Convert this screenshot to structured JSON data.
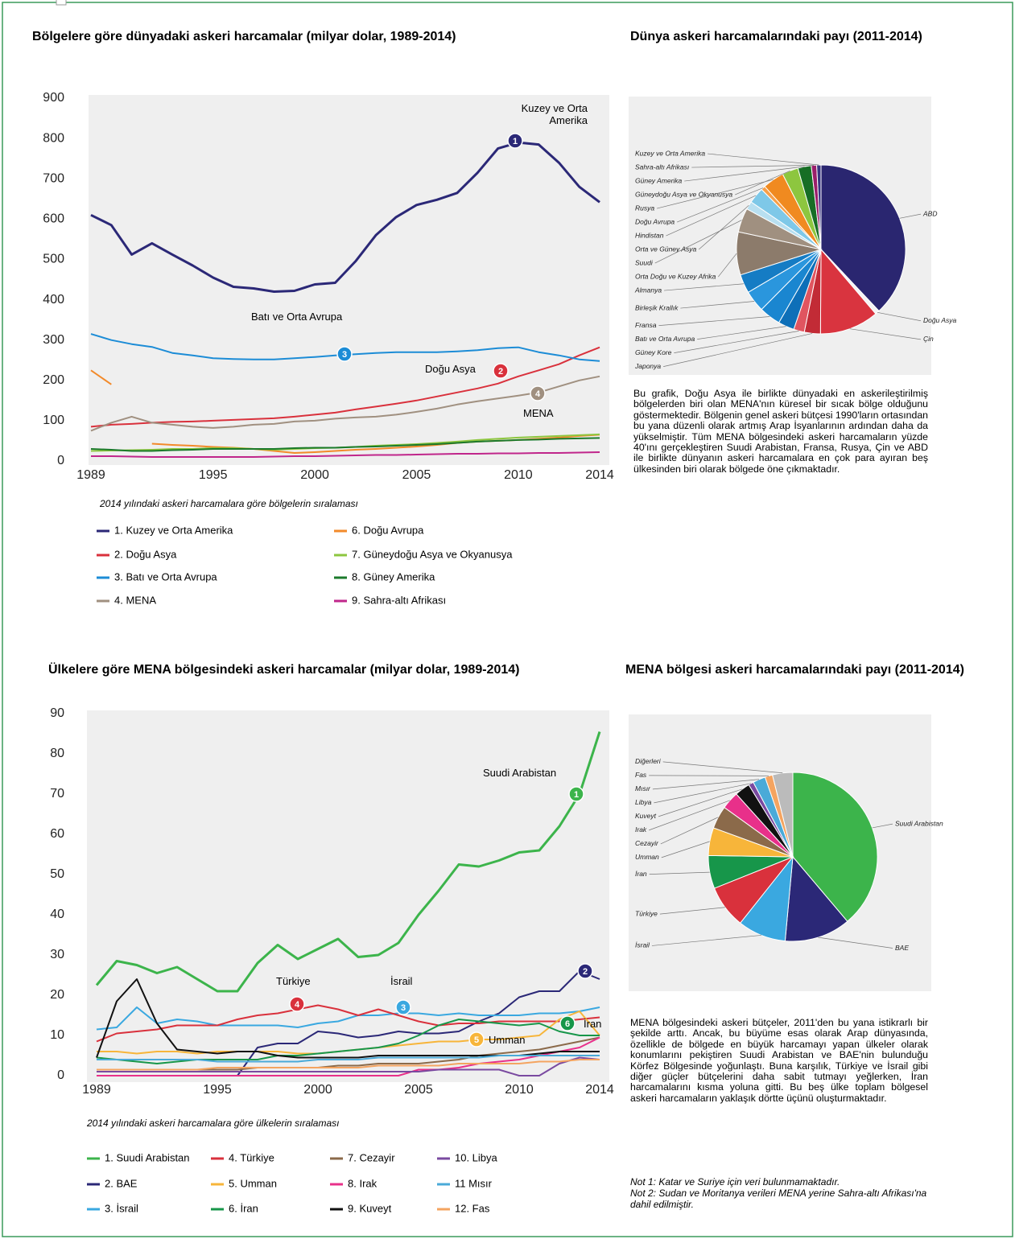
{
  "chart_data": [
    {
      "type": "line",
      "title": "Bölgelere göre dünyadaki askeri harcamalar (milyar dolar, 1989-2014)",
      "x": [
        1989,
        1990,
        1991,
        1992,
        1993,
        1994,
        1995,
        1996,
        1997,
        1998,
        1999,
        2000,
        2001,
        2002,
        2003,
        2004,
        2005,
        2006,
        2007,
        2008,
        2009,
        2010,
        2011,
        2012,
        2013,
        2014
      ],
      "xlim": [
        1989,
        2014
      ],
      "xticks": [
        1989,
        1995,
        2000,
        2005,
        2010,
        2014
      ],
      "ylim": [
        0,
        900
      ],
      "yticks": [
        0,
        100,
        200,
        300,
        400,
        500,
        600,
        700,
        800,
        900
      ],
      "grid": false,
      "legend_title": "2014 yılındaki askeri harcamalara göre bölgelerin sıralaması",
      "series": [
        {
          "name": "1. Kuzey ve Orta Amerika",
          "color": "#2b2877",
          "values": [
            610,
            585,
            512,
            540,
            512,
            485,
            455,
            432,
            428,
            420,
            422,
            438,
            442,
            495,
            560,
            605,
            635,
            648,
            665,
            715,
            775,
            790,
            785,
            740,
            680,
            642
          ]
        },
        {
          "name": "2. Doğu Asya",
          "color": "#d9313c",
          "values": [
            85,
            90,
            92,
            95,
            97,
            98,
            100,
            102,
            104,
            106,
            110,
            115,
            120,
            128,
            135,
            142,
            150,
            160,
            170,
            180,
            192,
            210,
            225,
            240,
            262,
            282
          ]
        },
        {
          "name": "3. Batı ve Orta Avrupa",
          "color": "#1c8cd6",
          "values": [
            315,
            300,
            290,
            283,
            268,
            262,
            255,
            253,
            252,
            252,
            255,
            258,
            262,
            265,
            268,
            270,
            270,
            270,
            272,
            275,
            280,
            282,
            270,
            262,
            252,
            248
          ]
        },
        {
          "name": "4. MENA",
          "color": "#a09080",
          "values": [
            75,
            95,
            110,
            95,
            90,
            85,
            82,
            85,
            90,
            92,
            98,
            100,
            105,
            108,
            110,
            115,
            122,
            130,
            140,
            148,
            155,
            162,
            170,
            185,
            200,
            210
          ]
        },
        {
          "name": "6. Doğu Avrupa",
          "color": "#f28a2a",
          "values": [
            225,
            190,
            null,
            43,
            40,
            38,
            35,
            33,
            30,
            25,
            20,
            22,
            25,
            28,
            30,
            33,
            36,
            40,
            45,
            48,
            50,
            52,
            55,
            58,
            62,
            65
          ]
        },
        {
          "name": "7. Güneydoğu Asya ve Okyanusya",
          "color": "#8dc63f",
          "values": [
            25,
            26,
            27,
            28,
            30,
            30,
            32,
            32,
            30,
            28,
            30,
            32,
            33,
            35,
            38,
            40,
            42,
            45,
            48,
            52,
            55,
            58,
            60,
            62,
            64,
            66
          ]
        },
        {
          "name": "8. Güney Amerika",
          "color": "#1b7a2b",
          "values": [
            30,
            28,
            25,
            25,
            27,
            28,
            30,
            30,
            30,
            30,
            32,
            33,
            33,
            35,
            36,
            38,
            40,
            42,
            45,
            48,
            50,
            52,
            53,
            55,
            56,
            57
          ]
        },
        {
          "name": "9. Sahra-altı Afrikası",
          "color": "#c0268b",
          "values": [
            12,
            12,
            11,
            10,
            10,
            10,
            10,
            10,
            10,
            11,
            12,
            12,
            13,
            14,
            15,
            15,
            16,
            17,
            18,
            18,
            19,
            19,
            20,
            20,
            21,
            22
          ]
        }
      ],
      "annotations": [
        "Kuzey ve Orta Amerika",
        "Batı ve Orta Avrupa",
        "Doğu Asya",
        "MENA"
      ],
      "badges": [
        "1",
        "2",
        "3",
        "4"
      ]
    },
    {
      "type": "pie",
      "title": "Dünya askeri harcamalarındaki payı (2011-2014)",
      "labels": [
        "ABD",
        "Doğu Asya",
        "Çin",
        "Japonya",
        "Güney Kore",
        "Batı ve Orta Avrupa",
        "Fransa",
        "Birleşik Krallık",
        "Almanya",
        "Orta Doğu ve Kuzey Afrika",
        "Suudi",
        "Orta ve Güney Asya",
        "Hindistan",
        "Doğu Avrupa",
        "Rusya",
        "Güneydoğu Asya ve Okyanusya",
        "Güney Amerika",
        "Sahra-altı Afrikası",
        "Kuzey ve Orta Amerika"
      ],
      "values": [
        37,
        0.8,
        11,
        3,
        2,
        3,
        4,
        4,
        3.5,
        8,
        4.5,
        1.5,
        3,
        0.8,
        4,
        3,
        2.5,
        1,
        0.8
      ],
      "colors": [
        "#2a2670",
        "#f4f4f4",
        "#d9343f",
        "#c22b36",
        "#e05560",
        "#0e6fb8",
        "#1a86d0",
        "#2a96dd",
        "#157cc4",
        "#8c7b6b",
        "#a09080",
        "#b8dff0",
        "#7ec8e8",
        "#f7a04a",
        "#f08a20",
        "#8dc63f",
        "#176e25",
        "#9a1f6a",
        "#3a3580"
      ]
    },
    {
      "type": "line",
      "title": "Ülkelere göre MENA bölgesindeki askeri harcamalar (milyar dolar, 1989-2014)",
      "x": [
        1989,
        1990,
        1991,
        1992,
        1993,
        1994,
        1995,
        1996,
        1997,
        1998,
        1999,
        2000,
        2001,
        2002,
        2003,
        2004,
        2005,
        2006,
        2007,
        2008,
        2009,
        2010,
        2011,
        2012,
        2013,
        2014
      ],
      "xlim": [
        1989,
        2014
      ],
      "xticks": [
        1989,
        1995,
        2000,
        2005,
        2010,
        2014
      ],
      "ylim": [
        0,
        90
      ],
      "yticks": [
        0,
        10,
        20,
        30,
        40,
        50,
        60,
        70,
        80,
        90
      ],
      "grid": false,
      "legend_title": "2014 yılındaki askeri harcamalara göre ülkelerin sıralaması",
      "series": [
        {
          "name": "1. Suudi Arabistan",
          "color": "#3cb44b",
          "values": [
            22.5,
            28.5,
            27.5,
            25.5,
            27,
            24,
            21,
            21,
            28,
            32.5,
            29,
            31.5,
            34,
            29.5,
            30,
            33,
            40,
            46,
            52.5,
            52,
            53.5,
            55.5,
            56,
            62,
            70,
            85.5
          ]
        },
        {
          "name": "2. BAE",
          "color": "#2b2877",
          "values": [
            0,
            0,
            0,
            0,
            0,
            0,
            0,
            0,
            7,
            8,
            8,
            11,
            10.5,
            9.5,
            10,
            11,
            10.5,
            10.5,
            11,
            13.5,
            15.5,
            19.5,
            21,
            21,
            26,
            24
          ]
        },
        {
          "name": "3. İsrail",
          "color": "#3aa8e0",
          "values": [
            11.5,
            12,
            17,
            13,
            14,
            13.5,
            12.5,
            12.5,
            12.5,
            12.5,
            12,
            13,
            13.5,
            15,
            15,
            15.5,
            15.5,
            15,
            15.5,
            15,
            15,
            15,
            15.5,
            15.5,
            16,
            17
          ]
        },
        {
          "name": "4. Türkiye",
          "color": "#d9313c",
          "values": [
            8.5,
            10.5,
            11,
            11.5,
            12.5,
            12.5,
            12.5,
            14,
            15,
            15.5,
            16.5,
            17.5,
            16.5,
            15,
            16.5,
            15,
            13.5,
            12.5,
            13,
            13,
            13.5,
            13.5,
            13.5,
            13.5,
            14,
            14.5
          ]
        },
        {
          "name": "5. Umman",
          "color": "#f7b53a",
          "values": [
            6,
            6,
            5.5,
            6,
            6,
            5.5,
            6,
            6,
            6,
            6,
            5.5,
            5.5,
            6,
            6.5,
            7,
            7.5,
            8,
            8.5,
            8.5,
            9,
            9,
            9.5,
            10,
            14,
            16,
            10
          ]
        },
        {
          "name": "6. İran",
          "color": "#17964a",
          "values": [
            4.5,
            4,
            3.5,
            3,
            3.5,
            4,
            4,
            4,
            4,
            5,
            5,
            5.5,
            6,
            6.5,
            7,
            8,
            10,
            12.5,
            14,
            13.5,
            13,
            12.5,
            13,
            11,
            10,
            10
          ]
        },
        {
          "name": "7. Cezayir",
          "color": "#8b6a4a",
          "values": [
            1.5,
            1.5,
            1.5,
            1.5,
            1.5,
            1.5,
            1.5,
            1.5,
            2,
            2,
            2,
            2,
            2.5,
            2.5,
            3,
            3,
            3,
            3.5,
            4,
            5,
            5.5,
            6,
            6.5,
            7.5,
            8.5,
            9.5
          ]
        },
        {
          "name": "8. Irak",
          "color": "#e8308a",
          "values": [
            0,
            0,
            0,
            0,
            0,
            0,
            0,
            0,
            0,
            0,
            0,
            0,
            0,
            0,
            0,
            0,
            1.5,
            1.5,
            2,
            3,
            3.5,
            4,
            5,
            6,
            7,
            9.5
          ]
        },
        {
          "name": "9. Kuveyt",
          "color": "#111111",
          "values": [
            4.5,
            18.5,
            24,
            13,
            6.5,
            6,
            5.5,
            6,
            6,
            5,
            4.5,
            4.5,
            4.5,
            4.5,
            5,
            5,
            5,
            5,
            5,
            5,
            5,
            5,
            5.5,
            6,
            6,
            6
          ]
        },
        {
          "name": "10. Libya",
          "color": "#7a4aa0",
          "values": [
            1,
            1,
            1,
            1,
            1,
            1,
            1,
            1,
            1,
            1,
            1,
            1,
            1,
            1,
            1,
            1,
            1,
            1.5,
            1.5,
            1.5,
            1.5,
            0,
            0,
            3,
            4.5,
            4
          ]
        },
        {
          "name": "11 Mısır",
          "color": "#4aaad8",
          "values": [
            4,
            4,
            4,
            4,
            4,
            4,
            3.5,
            3.5,
            3.5,
            3.5,
            3.5,
            4,
            4,
            4,
            4.5,
            4.5,
            4.5,
            4.5,
            4.5,
            4.5,
            5,
            5,
            5,
            5,
            5,
            5
          ]
        },
        {
          "name": "12. Fas",
          "color": "#f4a460",
          "values": [
            1.5,
            1.5,
            1.5,
            1.5,
            1.5,
            1.5,
            2,
            2,
            2,
            2,
            2,
            2,
            2,
            2,
            2.5,
            2.5,
            2.5,
            2.5,
            3,
            3,
            3,
            3,
            3.5,
            3.5,
            4,
            4
          ]
        }
      ],
      "annotations": [
        "Suudi Arabistan",
        "Türkiye",
        "İsrail",
        "Umman",
        "İran"
      ],
      "badges": [
        "1",
        "2",
        "3",
        "4",
        "5",
        "6"
      ]
    },
    {
      "type": "pie",
      "title": "MENA bölgesi askeri harcamalarındaki payı (2011-2014)",
      "labels": [
        "Suudi Arabistan",
        "BAE",
        "İsrail",
        "Türkiye",
        "İran",
        "Umman",
        "Cezayir",
        "Irak",
        "Kuveyt",
        "Libya",
        "Mısır",
        "Fas",
        "Diğerleri"
      ],
      "values": [
        40,
        13,
        9.5,
        8.5,
        6.5,
        5.5,
        4.5,
        3.5,
        3,
        1,
        2.5,
        1.5,
        4
      ],
      "colors": [
        "#3cb44b",
        "#2b2877",
        "#3aa8e0",
        "#d9313c",
        "#17964a",
        "#f7b53a",
        "#8b6a4a",
        "#e8308a",
        "#111111",
        "#7a4aa0",
        "#4aaad8",
        "#f4a460",
        "#bbbbbb"
      ]
    }
  ],
  "texts": {
    "paragraph_1": "Bu grafik, Doğu Asya ile birlikte dünyadaki en askerileştirilmiş bölgelerden biri olan MENA'nın küresel bir sıcak bölge olduğunu göstermektedir. Bölgenin genel askeri bütçesi 1990'ların ortasından bu yana düzenli olarak artmış Arap İsyanlarının ardından daha da yükselmiştir. Tüm MENA bölgesindeki askeri harcamaların yüzde 40'ını gerçekleştiren Suudi Arabistan, Fransa, Rusya, Çin ve ABD ile birlikte dünyanın askeri harcamalara en çok para ayıran beş ülkesinden biri olarak bölgede öne çıkmaktadır.",
    "paragraph_2": "MENA bölgesindeki askeri bütçeler, 2011'den bu yana istikrarlı bir şekilde arttı. Ancak, bu büyüme esas olarak Arap dünyasında, özellikle de bölgede en büyük harcamayı yapan ülkeler olarak konumlarını pekiştiren Suudi Arabistan ve BAE'nin bulunduğu Körfez Bölgesinde yoğunlaştı. Buna karşılık, Türkiye ve İsrail gibi diğer güçler bütçelerini daha sabit tutmayı yeğlerken, İran harcamalarını kısma yoluna gitti. Bu beş ülke toplam bölgesel askeri harcamaların yaklaşık dörtte üçünü oluşturmaktadır.",
    "note_1": "Not 1: Katar ve Suriye için veri bulunmamaktadır.",
    "note_2": "Not 2: Sudan ve Moritanya verileri MENA yerine Sahra-altı Afrikası'na dahil edilmiştir."
  }
}
